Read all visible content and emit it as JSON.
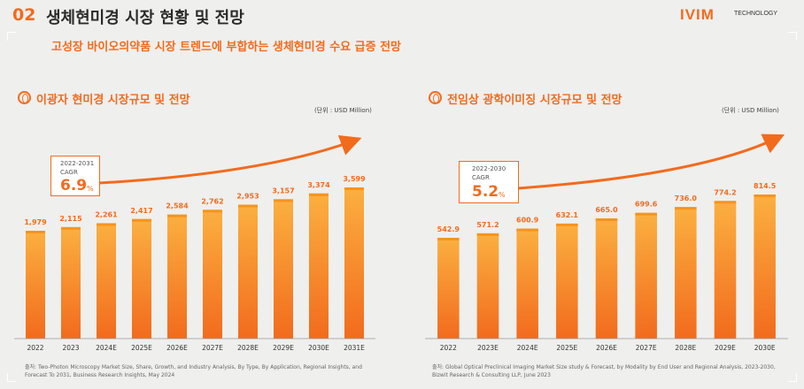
{
  "header": {
    "section_number": "02",
    "title": "생체현미경 시장 현황 및 전망",
    "subtitle": "고성장 바이오의약품 시장 트렌드에 부합하는 생체현미경 수요 급증 전망",
    "logo_text": "IVIM",
    "logo_sub": "TECHNOLOGY"
  },
  "colors": {
    "accent": "#f26b1d",
    "bar_top": "#fbb040",
    "bar_bottom": "#f26b1d"
  },
  "chart_data": [
    {
      "type": "bar",
      "title": "이광자 현미경 시장규모 및 전망",
      "unit_label": "(단위 : USD Million)",
      "categories": [
        "2022",
        "2023",
        "2024E",
        "2025E",
        "2026E",
        "2027E",
        "2028E",
        "2029E",
        "2030E",
        "2031E"
      ],
      "values": [
        1979,
        2115,
        2261,
        2417,
        2584,
        2762,
        2953,
        3157,
        3374,
        3599
      ],
      "value_labels": [
        "1,979",
        "2,115",
        "2,261",
        "2,417",
        "2,584",
        "2,762",
        "2,953",
        "3,157",
        "3,374",
        "3,599"
      ],
      "cagr": {
        "period": "2022-2031",
        "label": "CAGR",
        "value": "6.9",
        "unit": "%"
      },
      "source": "출처: Two-Photon Microscopy Market Size, Share, Growth, and Industry Analysis, By Type, By Application, Regional Insights, and Forecast To 2031, Business Research Insights, May 2024"
    },
    {
      "type": "bar",
      "title": "전임상 광학이미징 시장규모 및 전망",
      "unit_label": "(단위 : USD Million)",
      "categories": [
        "2022",
        "2023E",
        "2024E",
        "2025E",
        "2026E",
        "2027E",
        "2028E",
        "2029E",
        "2030E"
      ],
      "values": [
        542.9,
        571.2,
        600.9,
        632.1,
        665.0,
        699.6,
        736.0,
        774.2,
        814.5
      ],
      "value_labels": [
        "542.9",
        "571.2",
        "600.9",
        "632.1",
        "665.0",
        "699.6",
        "736.0",
        "774.2",
        "814.5"
      ],
      "cagr": {
        "period": "2022-2030",
        "label": "CAGR",
        "value": "5.2",
        "unit": "%"
      },
      "source": "출처: Global Optical Preclinical Imaging Market Size study & Forecast, by Modality by End User and Regional Analysis, 2023-2030, Bizwit Research & Consulting LLP, June 2023"
    }
  ]
}
